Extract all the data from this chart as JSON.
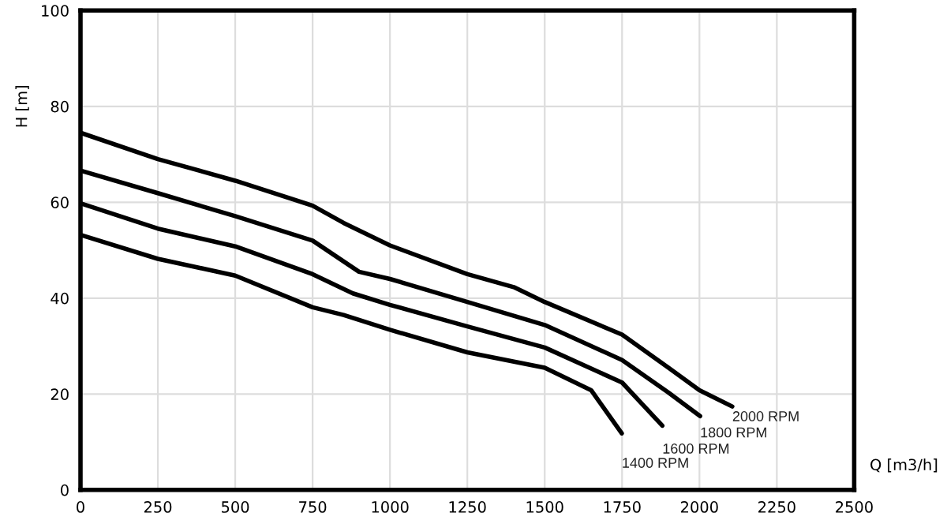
{
  "chart_data": {
    "type": "line",
    "xlabel": "Q [m3/h]",
    "ylabel": "H [m]",
    "xlim": [
      0,
      2500
    ],
    "ylim": [
      0,
      100
    ],
    "xticks": [
      0,
      250,
      500,
      750,
      1000,
      1250,
      1500,
      1750,
      2000,
      2250,
      2500
    ],
    "yticks": [
      0,
      20,
      40,
      60,
      80,
      100
    ],
    "grid": true,
    "legend": false,
    "marker": "none",
    "line_style": "solid",
    "series": [
      {
        "name": "2000 RPM",
        "color": "#000000",
        "x": [
          0,
          250,
          500,
          750,
          850,
          1000,
          1250,
          1400,
          1500,
          1750,
          1900,
          2000,
          2106
        ],
        "values": [
          74.5,
          69,
          64.5,
          59.3,
          55.7,
          51,
          45,
          42.3,
          39.2,
          32.4,
          25.5,
          20.8,
          17.4
        ]
      },
      {
        "name": "1800 RPM",
        "color": "#000000",
        "x": [
          0,
          250,
          500,
          750,
          900,
          1000,
          1250,
          1500,
          1750,
          1900,
          2002
        ],
        "values": [
          66.6,
          61.9,
          57.1,
          52,
          45.5,
          44,
          39.2,
          34.4,
          27.1,
          20.3,
          15.4
        ]
      },
      {
        "name": "1600 RPM",
        "color": "#000000",
        "x": [
          0,
          250,
          500,
          750,
          880,
          1000,
          1250,
          1500,
          1750,
          1880
        ],
        "values": [
          59.8,
          54.5,
          50.8,
          45,
          41,
          38.6,
          34.1,
          29.7,
          22.4,
          13.4
        ]
      },
      {
        "name": "1400 RPM",
        "color": "#000000",
        "x": [
          0,
          250,
          500,
          750,
          850,
          1000,
          1250,
          1500,
          1650,
          1749
        ],
        "values": [
          53.2,
          48.2,
          44.7,
          38.1,
          36.5,
          33.4,
          28.7,
          25.5,
          20.8,
          11.8
        ]
      }
    ]
  }
}
